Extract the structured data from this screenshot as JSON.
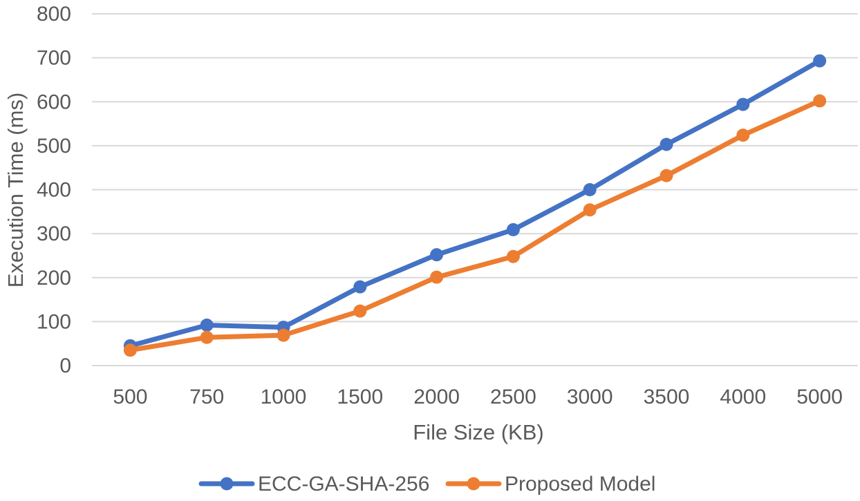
{
  "chart_data": {
    "type": "line",
    "title": "",
    "xlabel": "File Size (KB)",
    "ylabel": "Execution Time (ms)",
    "categories": [
      "500",
      "750",
      "1000",
      "1500",
      "2000",
      "2500",
      "3000",
      "3500",
      "4000",
      "5000"
    ],
    "ylim": [
      0,
      800
    ],
    "yticks": [
      "0",
      "100",
      "200",
      "300",
      "400",
      "500",
      "600",
      "700",
      "800"
    ],
    "grid": true,
    "legend_position": "bottom",
    "series": [
      {
        "name": "ECC-GA-SHA-256",
        "color": "#4472c4",
        "values": [
          45,
          92,
          87,
          179,
          252,
          309,
          400,
          503,
          594,
          693
        ]
      },
      {
        "name": "Proposed Model",
        "color": "#ed7d31",
        "values": [
          35,
          64,
          69,
          124,
          201,
          248,
          354,
          432,
          524,
          602
        ]
      }
    ]
  }
}
